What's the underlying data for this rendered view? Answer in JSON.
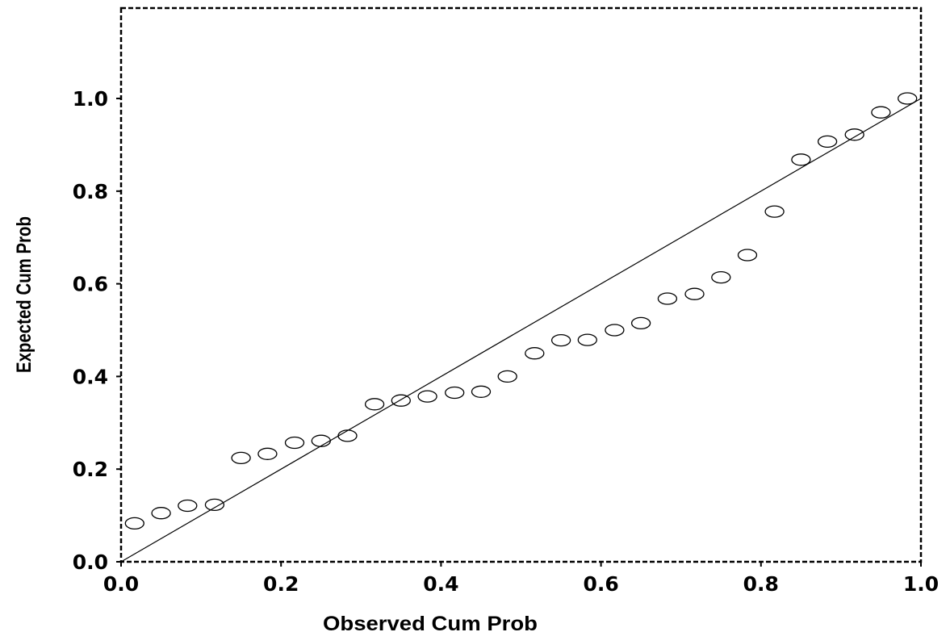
{
  "chart_data": {
    "type": "scatter",
    "title": "",
    "xlabel": "Observed Cum Prob",
    "ylabel": "Expected Cum Prob",
    "xlim": [
      0.0,
      1.0
    ],
    "ylim": [
      0.0,
      1.0
    ],
    "x_ticks": [
      "0.0",
      "0.2",
      "0.4",
      "0.6",
      "0.8",
      "1.0"
    ],
    "y_ticks": [
      "0.0",
      "0.2",
      "0.4",
      "0.6",
      "0.8",
      "1.0"
    ],
    "reference_line": {
      "from": [
        0.0,
        0.0
      ],
      "to": [
        1.0,
        1.0
      ]
    },
    "marker": "open-circle",
    "grid": false,
    "points": [
      {
        "x": 0.017,
        "y": 0.083
      },
      {
        "x": 0.05,
        "y": 0.105
      },
      {
        "x": 0.083,
        "y": 0.121
      },
      {
        "x": 0.117,
        "y": 0.123
      },
      {
        "x": 0.15,
        "y": 0.224
      },
      {
        "x": 0.183,
        "y": 0.233
      },
      {
        "x": 0.217,
        "y": 0.257
      },
      {
        "x": 0.25,
        "y": 0.261
      },
      {
        "x": 0.283,
        "y": 0.272
      },
      {
        "x": 0.317,
        "y": 0.34
      },
      {
        "x": 0.35,
        "y": 0.348
      },
      {
        "x": 0.383,
        "y": 0.357
      },
      {
        "x": 0.417,
        "y": 0.365
      },
      {
        "x": 0.45,
        "y": 0.367
      },
      {
        "x": 0.483,
        "y": 0.4
      },
      {
        "x": 0.517,
        "y": 0.45
      },
      {
        "x": 0.55,
        "y": 0.478
      },
      {
        "x": 0.583,
        "y": 0.479
      },
      {
        "x": 0.617,
        "y": 0.5
      },
      {
        "x": 0.65,
        "y": 0.515
      },
      {
        "x": 0.683,
        "y": 0.568
      },
      {
        "x": 0.717,
        "y": 0.578
      },
      {
        "x": 0.75,
        "y": 0.614
      },
      {
        "x": 0.783,
        "y": 0.662
      },
      {
        "x": 0.817,
        "y": 0.756
      },
      {
        "x": 0.85,
        "y": 0.868
      },
      {
        "x": 0.883,
        "y": 0.907
      },
      {
        "x": 0.917,
        "y": 0.922
      },
      {
        "x": 0.95,
        "y": 0.97
      },
      {
        "x": 0.983,
        "y": 1.0
      }
    ]
  }
}
